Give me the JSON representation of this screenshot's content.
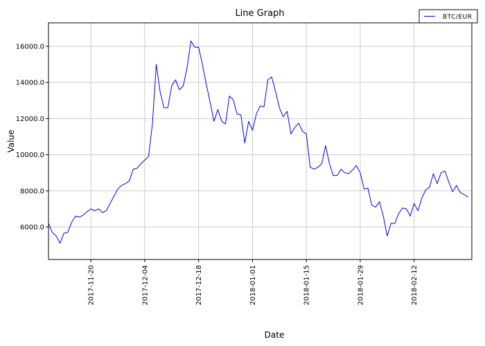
{
  "chart_data": {
    "type": "line",
    "title": "Line Graph",
    "xlabel": "Date",
    "ylabel": "Value",
    "x_axis": "date",
    "xlim": [
      "2017-11-09",
      "2018-02-27"
    ],
    "ylim": [
      4200,
      17300
    ],
    "x_ticks": [
      "2017-11-20",
      "2017-12-04",
      "2017-12-18",
      "2018-01-01",
      "2018-01-15",
      "2018-01-29",
      "2018-02-12"
    ],
    "y_ticks": [
      6000.0,
      8000.0,
      10000.0,
      12000.0,
      14000.0,
      16000.0
    ],
    "y_tick_labels": [
      "6000.0",
      "8000.0",
      "10000.0",
      "12000.0",
      "14000.0",
      "16000.0"
    ],
    "grid": true,
    "legend_position": "top-right",
    "colors": {
      "series": "#0000ee",
      "grid": "#cccccc",
      "axis": "#000000"
    },
    "series": [
      {
        "name": "BTC/EUR",
        "points": [
          [
            "2017-11-09",
            6200
          ],
          [
            "2017-11-10",
            5700
          ],
          [
            "2017-11-11",
            5500
          ],
          [
            "2017-11-12",
            5100
          ],
          [
            "2017-11-13",
            5650
          ],
          [
            "2017-11-14",
            5700
          ],
          [
            "2017-11-15",
            6250
          ],
          [
            "2017-11-16",
            6600
          ],
          [
            "2017-11-17",
            6550
          ],
          [
            "2017-11-18",
            6650
          ],
          [
            "2017-11-19",
            6850
          ],
          [
            "2017-11-20",
            7000
          ],
          [
            "2017-11-21",
            6900
          ],
          [
            "2017-11-22",
            7000
          ],
          [
            "2017-11-23",
            6800
          ],
          [
            "2017-11-24",
            6900
          ],
          [
            "2017-11-25",
            7300
          ],
          [
            "2017-11-26",
            7700
          ],
          [
            "2017-11-27",
            8100
          ],
          [
            "2017-11-28",
            8300
          ],
          [
            "2017-11-29",
            8400
          ],
          [
            "2017-11-30",
            8550
          ],
          [
            "2017-12-01",
            9200
          ],
          [
            "2017-12-02",
            9250
          ],
          [
            "2017-12-03",
            9500
          ],
          [
            "2017-12-04",
            9700
          ],
          [
            "2017-12-05",
            9900
          ],
          [
            "2017-12-06",
            11700
          ],
          [
            "2017-12-07",
            15000
          ],
          [
            "2017-12-08",
            13500
          ],
          [
            "2017-12-09",
            12600
          ],
          [
            "2017-12-10",
            12600
          ],
          [
            "2017-12-11",
            13800
          ],
          [
            "2017-12-12",
            14150
          ],
          [
            "2017-12-13",
            13600
          ],
          [
            "2017-12-14",
            13800
          ],
          [
            "2017-12-15",
            14800
          ],
          [
            "2017-12-16",
            16300
          ],
          [
            "2017-12-17",
            15950
          ],
          [
            "2017-12-18",
            15950
          ],
          [
            "2017-12-19",
            15000
          ],
          [
            "2017-12-20",
            13900
          ],
          [
            "2017-12-21",
            12900
          ],
          [
            "2017-12-22",
            11850
          ],
          [
            "2017-12-23",
            12500
          ],
          [
            "2017-12-24",
            11850
          ],
          [
            "2017-12-25",
            11700
          ],
          [
            "2017-12-26",
            13250
          ],
          [
            "2017-12-27",
            13050
          ],
          [
            "2017-12-28",
            12250
          ],
          [
            "2017-12-29",
            12200
          ],
          [
            "2017-12-30",
            10650
          ],
          [
            "2017-12-31",
            11850
          ],
          [
            "2018-01-01",
            11350
          ],
          [
            "2018-01-02",
            12250
          ],
          [
            "2018-01-03",
            12700
          ],
          [
            "2018-01-04",
            12650
          ],
          [
            "2018-01-05",
            14150
          ],
          [
            "2018-01-06",
            14300
          ],
          [
            "2018-01-07",
            13500
          ],
          [
            "2018-01-08",
            12600
          ],
          [
            "2018-01-09",
            12100
          ],
          [
            "2018-01-10",
            12400
          ],
          [
            "2018-01-11",
            11150
          ],
          [
            "2018-01-12",
            11500
          ],
          [
            "2018-01-13",
            11750
          ],
          [
            "2018-01-14",
            11300
          ],
          [
            "2018-01-15",
            11150
          ],
          [
            "2018-01-16",
            9300
          ],
          [
            "2018-01-17",
            9200
          ],
          [
            "2018-01-18",
            9300
          ],
          [
            "2018-01-19",
            9500
          ],
          [
            "2018-01-20",
            10500
          ],
          [
            "2018-01-21",
            9500
          ],
          [
            "2018-01-22",
            8850
          ],
          [
            "2018-01-23",
            8850
          ],
          [
            "2018-01-24",
            9200
          ],
          [
            "2018-01-25",
            9000
          ],
          [
            "2018-01-26",
            8950
          ],
          [
            "2018-01-27",
            9150
          ],
          [
            "2018-01-28",
            9400
          ],
          [
            "2018-01-29",
            9000
          ],
          [
            "2018-01-30",
            8100
          ],
          [
            "2018-01-31",
            8150
          ],
          [
            "2018-02-01",
            7200
          ],
          [
            "2018-02-02",
            7100
          ],
          [
            "2018-02-03",
            7400
          ],
          [
            "2018-02-04",
            6600
          ],
          [
            "2018-02-05",
            5500
          ],
          [
            "2018-02-06",
            6200
          ],
          [
            "2018-02-07",
            6200
          ],
          [
            "2018-02-08",
            6750
          ],
          [
            "2018-02-09",
            7050
          ],
          [
            "2018-02-10",
            7000
          ],
          [
            "2018-02-11",
            6600
          ],
          [
            "2018-02-12",
            7300
          ],
          [
            "2018-02-13",
            6900
          ],
          [
            "2018-02-14",
            7600
          ],
          [
            "2018-02-15",
            8050
          ],
          [
            "2018-02-16",
            8200
          ],
          [
            "2018-02-17",
            8950
          ],
          [
            "2018-02-18",
            8400
          ],
          [
            "2018-02-19",
            9000
          ],
          [
            "2018-02-20",
            9100
          ],
          [
            "2018-02-21",
            8500
          ],
          [
            "2018-02-22",
            7950
          ],
          [
            "2018-02-23",
            8300
          ],
          [
            "2018-02-24",
            7900
          ],
          [
            "2018-02-25",
            7800
          ],
          [
            "2018-02-26",
            7650
          ]
        ]
      }
    ]
  }
}
